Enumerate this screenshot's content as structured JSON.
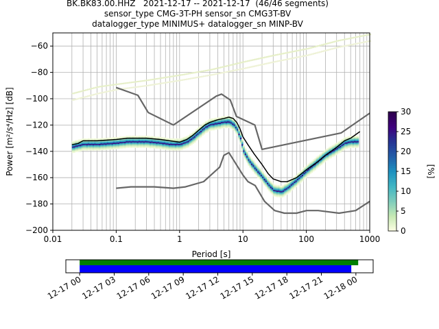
{
  "header": {
    "line1": "BK.BK83.00.HHZ   2021-12-17 -- 2021-12-17  (46/46 segments)",
    "line2": "sensor_type CMG-3T-PH sensor_sn CMG3T-BV",
    "line3": "datalogger_type MINIMUS+ datalogger_sn MINP-BV"
  },
  "chart_data": [
    {
      "type": "heatmap",
      "xlabel": "Period [s]",
      "ylabel": "Power [m²/s⁴/Hz] [dB]",
      "x_scale": "log",
      "xlim": [
        0.01,
        1000
      ],
      "ylim": [
        -200,
        -50
      ],
      "x_ticks": [
        0.01,
        0.1,
        1,
        10,
        100,
        1000
      ],
      "x_tick_labels": [
        "0.01",
        "0.1",
        "1",
        "10",
        "100",
        "1000"
      ],
      "y_ticks": [
        -200,
        -180,
        -160,
        -140,
        -120,
        -100,
        -80,
        -60
      ],
      "y_tick_labels": [
        "−200",
        "−180",
        "−160",
        "−140",
        "−120",
        "−100",
        "−80",
        "−60"
      ],
      "grid": true,
      "colorbar": {
        "label": "[%]",
        "range": [
          0,
          30
        ],
        "ticks": [
          0,
          5,
          10,
          15,
          20,
          25,
          30
        ],
        "tick_labels": [
          "0",
          "5",
          "10",
          "15",
          "20",
          "25",
          "30"
        ],
        "colormap": [
          "#ffffe5",
          "#c7e9b4",
          "#7fcdbb",
          "#41b6c4",
          "#1d91c0",
          "#225ea8",
          "#253494",
          "#3f007d",
          "#2d004b"
        ]
      },
      "psd_mode": {
        "period": [
          0.02,
          0.03,
          0.05,
          0.1,
          0.15,
          0.2,
          0.3,
          0.5,
          0.7,
          1,
          1.3,
          1.6,
          2,
          2.5,
          3,
          4,
          5,
          6,
          7,
          8,
          9,
          10,
          12,
          15,
          20,
          25,
          30,
          40,
          50,
          70,
          100,
          150,
          200,
          300,
          400,
          500,
          600
        ],
        "power": [
          -137,
          -135,
          -135,
          -134,
          -133,
          -133,
          -133,
          -134,
          -135,
          -135,
          -133,
          -130,
          -126,
          -122,
          -120,
          -119,
          -118,
          -118,
          -120,
          -124,
          -131,
          -140,
          -147,
          -153,
          -160,
          -166,
          -170,
          -171,
          -168,
          -162,
          -155,
          -148,
          -143,
          -138,
          -134,
          -133,
          -133
        ]
      },
      "psd_mean": {
        "period": [
          0.02,
          0.025,
          0.03,
          0.05,
          0.1,
          0.15,
          0.2,
          0.3,
          0.5,
          0.7,
          1,
          1.3,
          1.6,
          2,
          2.5,
          3,
          4,
          5,
          6,
          7,
          8,
          9,
          10,
          12,
          15,
          20,
          25,
          30,
          40,
          50,
          70,
          100,
          150,
          200,
          300,
          400,
          500,
          700
        ],
        "power": [
          -135,
          -134,
          -132,
          -132,
          -131,
          -130,
          -130,
          -130,
          -131,
          -132,
          -133,
          -131,
          -128,
          -124,
          -120,
          -118,
          -116,
          -115,
          -114,
          -115,
          -118,
          -123,
          -129,
          -135,
          -142,
          -150,
          -157,
          -161,
          -163,
          -163,
          -160,
          -154,
          -148,
          -143,
          -137,
          -132,
          -130,
          -125
        ]
      },
      "nlnm": {
        "period": [
          0.1,
          0.17,
          0.4,
          0.8,
          1.24,
          2.4,
          4.3,
          5,
          6,
          10,
          12,
          15.6,
          21.9,
          31.6,
          45,
          70,
          101,
          154,
          328,
          600,
          1000
        ],
        "power": [
          -168,
          -167,
          -167,
          -168,
          -167,
          -163,
          -152,
          -143,
          -141,
          -158,
          -163,
          -166,
          -178,
          -185,
          -187,
          -187,
          -185,
          -185,
          -187,
          -185,
          -178
        ]
      },
      "nhnm": {
        "period": [
          0.1,
          0.22,
          0.32,
          0.8,
          3.8,
          4.6,
          6.3,
          7.9,
          15.4,
          20,
          354.8,
          1000
        ],
        "power": [
          -91.5,
          -97.4,
          -110.5,
          -120,
          -98,
          -96.5,
          -101,
          -113.5,
          -120,
          -138.5,
          -126,
          -111
        ]
      },
      "artifact_traces": {
        "period": [
          0.02,
          0.05,
          0.1,
          0.3,
          1,
          3,
          10,
          30,
          100,
          300,
          1000
        ],
        "upper": [
          -96,
          -91,
          -89,
          -86,
          -82,
          -78,
          -72,
          -67,
          -62,
          -56,
          -51
        ],
        "lower": [
          -101,
          -96,
          -93,
          -90,
          -86,
          -82,
          -77,
          -72,
          -67,
          -61,
          -56
        ]
      }
    },
    {
      "type": "timeline",
      "x_tick_labels": [
        "12-17 00",
        "12-17 03",
        "12-17 06",
        "12-17 09",
        "12-17 12",
        "12-17 15",
        "12-17 18",
        "12-17 21",
        "12-18 00"
      ],
      "x_tick_hours": [
        0,
        3,
        6,
        9,
        12,
        15,
        18,
        21,
        24
      ],
      "xlim_hours": [
        -1.2,
        25.5
      ],
      "green_bar": {
        "start_hour": 0,
        "end_hour": 24.2,
        "color": "#008000"
      },
      "blue_bar": {
        "start_hour": 0,
        "end_hour": 23.6,
        "color": "#0000ff"
      }
    }
  ]
}
